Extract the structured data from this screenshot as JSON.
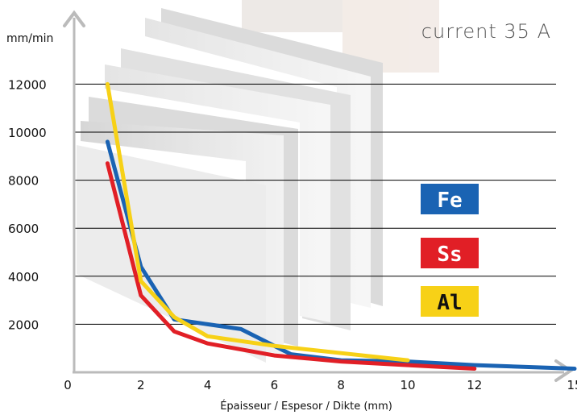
{
  "chart_data": {
    "type": "line",
    "title": "current 35 A",
    "ylabel": "mm/min",
    "xlabel": "Épaisseur / Espesor / Dikte (mm)",
    "xlim": [
      0,
      15
    ],
    "ylim": [
      0,
      12000
    ],
    "x_ticks": [
      0,
      2,
      4,
      6,
      8,
      10,
      12,
      15
    ],
    "x_tick_labels": [
      "0",
      "2",
      "4",
      "6",
      "8",
      "10",
      "12",
      "15"
    ],
    "y_ticks": [
      2000,
      4000,
      6000,
      8000,
      10000,
      12000
    ],
    "y_tick_labels": [
      "2000",
      "4000",
      "6000",
      "8000",
      "10000",
      "12000"
    ],
    "grid": "horizontal",
    "legend_placement": "right",
    "series": [
      {
        "name": "Fe",
        "color": "#1a63b3",
        "x": [
          1,
          2,
          3,
          4,
          5,
          6.5,
          8,
          10,
          12,
          15
        ],
        "y": [
          9600,
          4400,
          2200,
          2000,
          1800,
          750,
          500,
          450,
          300,
          150
        ]
      },
      {
        "name": "Ss",
        "color": "#e11f26",
        "x": [
          1,
          2,
          3,
          4,
          6,
          8,
          10,
          12
        ],
        "y": [
          8700,
          3200,
          1700,
          1200,
          700,
          450,
          300,
          150
        ]
      },
      {
        "name": "Al",
        "color": "#f7d117",
        "x": [
          1,
          2,
          3,
          4,
          6,
          8,
          10
        ],
        "y": [
          12000,
          3800,
          2300,
          1500,
          1100,
          800,
          500
        ]
      }
    ],
    "legend": [
      {
        "label": "Fe",
        "bg": "#1a63b3",
        "fg": "#ffffff"
      },
      {
        "label": "Ss",
        "bg": "#e11f26",
        "fg": "#ffffff"
      },
      {
        "label": "Al",
        "bg": "#f7d117",
        "fg": "#111111"
      }
    ]
  }
}
